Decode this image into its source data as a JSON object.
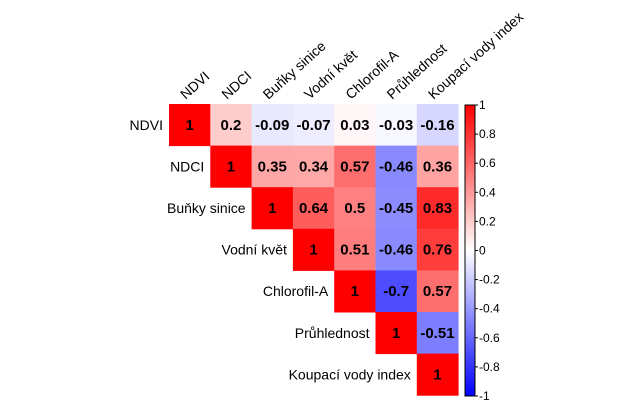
{
  "chart_data": {
    "type": "heatmap",
    "variables": [
      "NDVI",
      "NDCI",
      "Buňky sinice",
      "Vodní květ",
      "Chlorofil-A",
      "Průhlednost",
      "Koupací vody index"
    ],
    "matrix_upper": [
      [
        1,
        0.2,
        -0.09,
        -0.07,
        0.03,
        -0.03,
        -0.16
      ],
      [
        null,
        1,
        0.35,
        0.34,
        0.57,
        -0.46,
        0.36
      ],
      [
        null,
        null,
        1,
        0.64,
        0.5,
        -0.45,
        0.83
      ],
      [
        null,
        null,
        null,
        1,
        0.51,
        -0.46,
        0.76
      ],
      [
        null,
        null,
        null,
        null,
        1,
        -0.7,
        0.57
      ],
      [
        null,
        null,
        null,
        null,
        null,
        1,
        -0.51
      ],
      [
        null,
        null,
        null,
        null,
        null,
        null,
        1
      ]
    ],
    "colorbar": {
      "range": [
        -1,
        1
      ],
      "ticks": [
        "1",
        "0.8",
        "0.6",
        "0.4",
        "0.2",
        "0",
        "-0.2",
        "-0.4",
        "-0.6",
        "-0.8",
        "-1"
      ],
      "colors": {
        "low": "#0000ff",
        "mid": "#ffffff",
        "high": "#ff0000"
      },
      "placement": "right"
    }
  }
}
